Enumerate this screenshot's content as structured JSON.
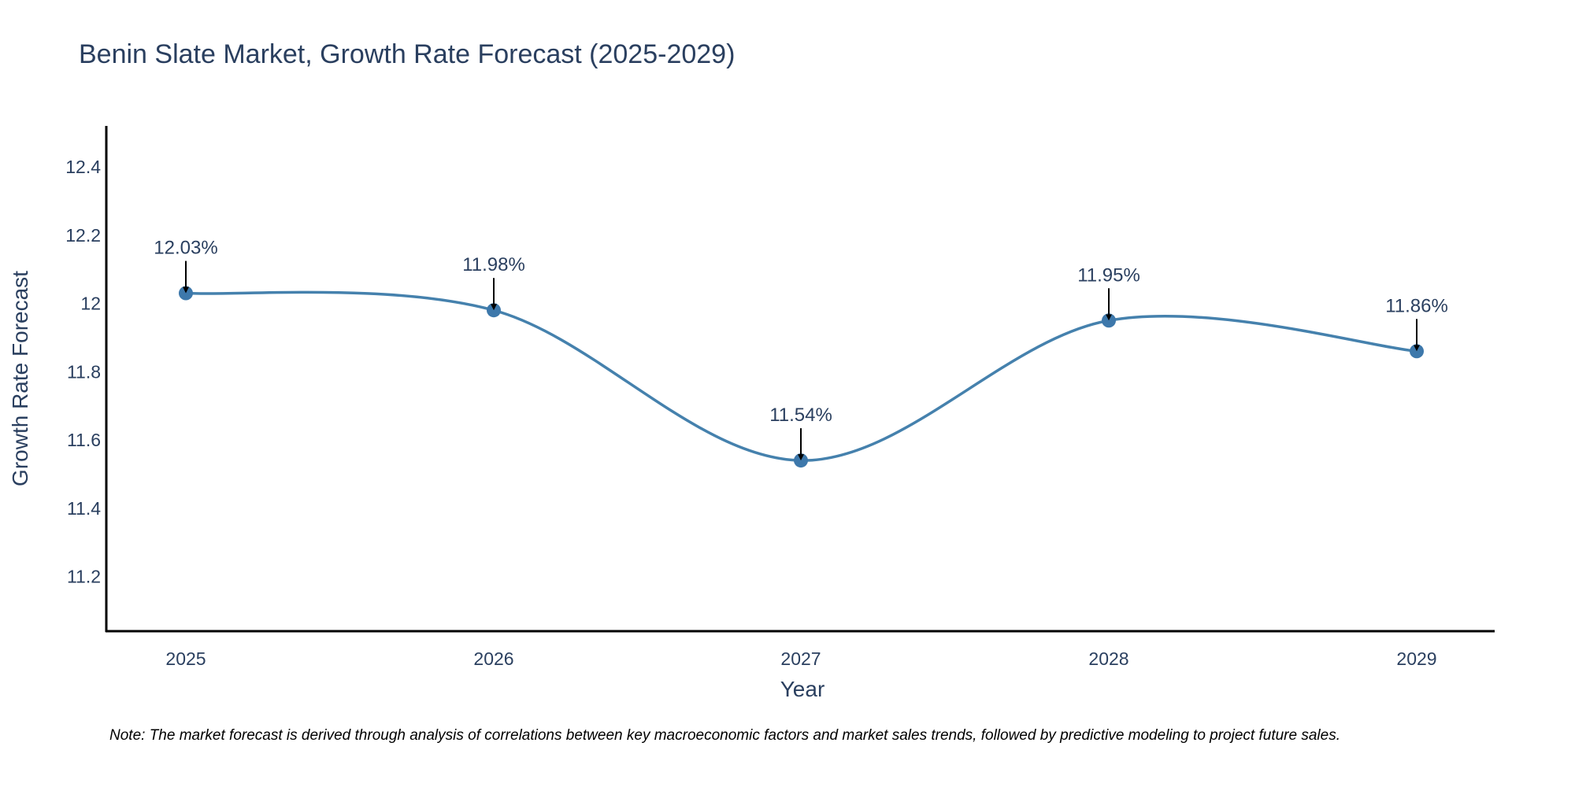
{
  "chart_data": {
    "type": "line",
    "title": "Benin Slate Market, Growth Rate Forecast (2025-2029)",
    "xlabel": "Year",
    "ylabel": "Growth Rate Forecast",
    "categories": [
      "2025",
      "2026",
      "2027",
      "2028",
      "2029"
    ],
    "series": [
      {
        "name": "Growth Rate Forecast",
        "values": [
          12.03,
          11.98,
          11.54,
          11.95,
          11.86
        ],
        "labels": [
          "12.03%",
          "11.98%",
          "11.54%",
          "11.95%",
          "11.86%"
        ]
      }
    ],
    "ylim": [
      11.04,
      12.52
    ],
    "yticks": [
      11.2,
      11.4,
      11.6,
      11.8,
      12,
      12.2,
      12.4
    ],
    "ytick_labels": [
      "11.2",
      "11.4",
      "11.6",
      "11.8",
      "12",
      "12.2",
      "12.4"
    ],
    "grid": false,
    "line_color": "#4581ad",
    "marker_color": "#3d78ab",
    "arrow_color": "#000000",
    "note": "Note: The market forecast is derived through analysis of correlations between key macroeconomic factors and market sales trends, followed by predictive modeling to project future sales."
  }
}
